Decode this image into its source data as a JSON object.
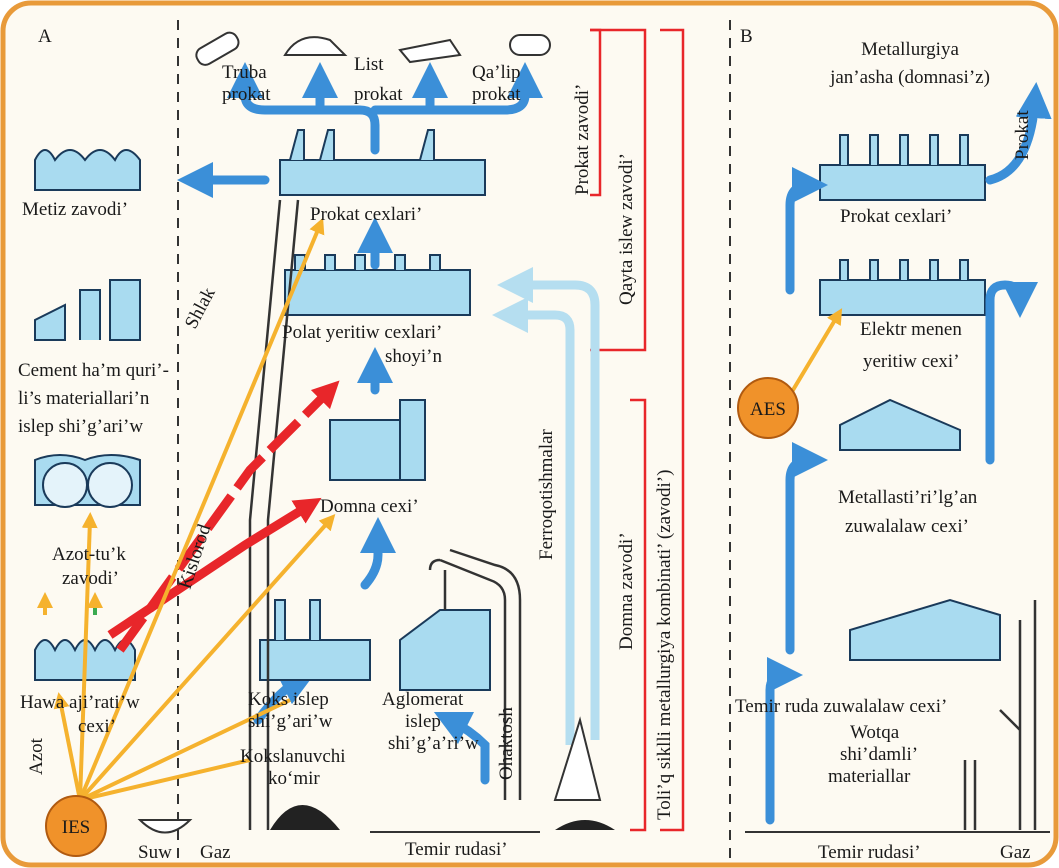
{
  "panel_a": {
    "label": "A",
    "products": {
      "truba": [
        "Truba",
        "prokat"
      ],
      "list": [
        "List",
        "prokat"
      ],
      "qalip": [
        "Qa’lip",
        "prokat"
      ]
    },
    "metiz": "Metiz zavodi’",
    "prokat_cexlari": "Prokat cexlari’",
    "shlak": "Shlak",
    "polat": [
      "Polat yeritiw cexlari’",
      "shoyi’n"
    ],
    "cement": [
      "Cement ha’m quri’-",
      "li’s materiallari’n",
      "islep shi’g’ari’w"
    ],
    "azot_tuk": [
      "Azot-tu’k",
      "zavodi’"
    ],
    "kislorod": "Kislorod",
    "domna": "Domna cexi’",
    "ferro": "Ferroqotishmalar",
    "hawa": [
      "Hawa aji’rati’w",
      "cexi’"
    ],
    "koks": [
      "Koks islep",
      "shi’g’ari’w"
    ],
    "aglomerat": [
      "Aglomerat",
      "islep",
      "shi’g’a’ri’w"
    ],
    "komir": [
      "Kokslanuvchi",
      "ko‘mir"
    ],
    "ohaktosh": "Ohaktosh",
    "azot": "Azot",
    "ies": "IES",
    "suw": "Suw",
    "gaz": "Gaz",
    "temir": "Temir rudasi’",
    "brackets": [
      "Prokat zavodi’",
      "Qayta islew zavodi’",
      "Domna zavodi’",
      "Toli’q siklli metallurgiya kombinati’ (zavodi’)"
    ]
  },
  "panel_b": {
    "label": "B",
    "title": [
      "Metallurgiya",
      "jan’asha (domnasi’z)"
    ],
    "prokat": "Prokat",
    "prokat_cexlari": "Prokat cexlari’",
    "elektr": [
      "Elektr menen",
      "yeritiw cexi’"
    ],
    "aes": "AES",
    "metallastirilgan": [
      "Metallasti’ri’lg’an",
      "zuwalalaw cexi’"
    ],
    "temir_ruda_cexi": "Temir ruda zuwalalaw cexi’",
    "wotqa": [
      "Wotqa",
      "shi’damli’",
      "materiallar"
    ],
    "temir": "Temir rudasi’",
    "gaz": "Gaz"
  }
}
